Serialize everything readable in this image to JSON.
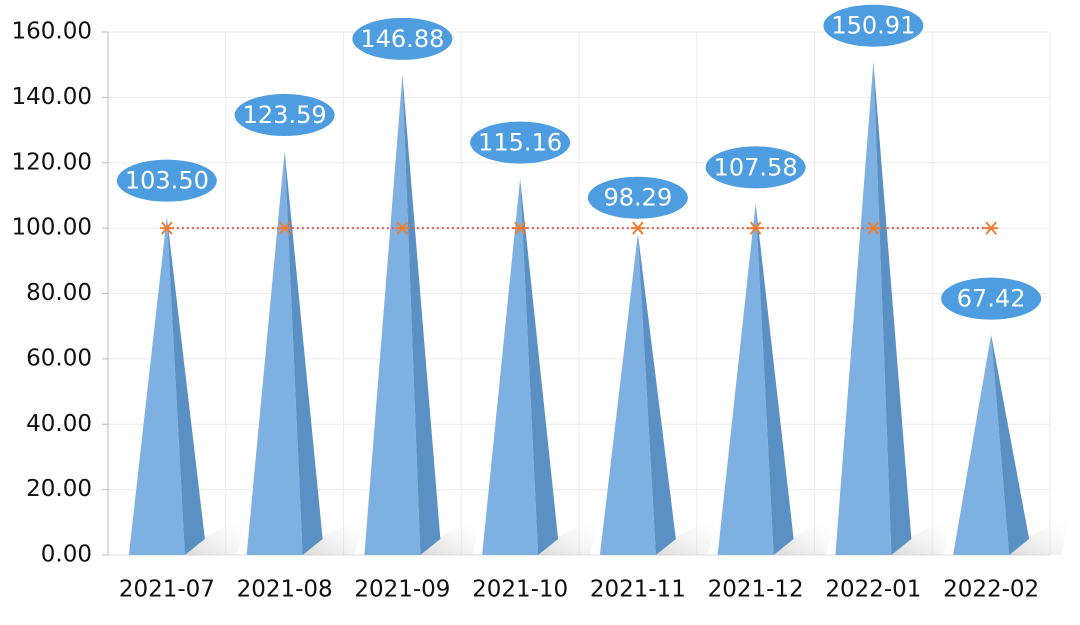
{
  "chart_data": {
    "type": "bar",
    "categories": [
      "2021-07",
      "2021-08",
      "2021-09",
      "2021-10",
      "2021-11",
      "2021-12",
      "2022-01",
      "2022-02"
    ],
    "series": [
      {
        "type": "bar",
        "color": "#7eb1e1",
        "label_color": "#4d9de0",
        "values": [
          103.5,
          123.59,
          146.88,
          115.16,
          98.29,
          107.58,
          150.91,
          67.42
        ],
        "value_labels": [
          "103.50",
          "123.59",
          "146.88",
          "115.16",
          "98.29",
          "107.58",
          "150.91",
          "67.42"
        ]
      },
      {
        "type": "line",
        "color": "#e05a4f",
        "marker_color": "#ee7d31",
        "values": [
          100,
          100,
          100,
          100,
          100,
          100,
          100,
          100
        ]
      }
    ],
    "ylim": [
      0,
      160
    ],
    "yticks": [
      {
        "value": 0,
        "label": "0.00"
      },
      {
        "value": 20,
        "label": "20.00"
      },
      {
        "value": 40,
        "label": "40.00"
      },
      {
        "value": 60,
        "label": "60.00"
      },
      {
        "value": 80,
        "label": "80.00"
      },
      {
        "value": 100,
        "label": "100.00"
      },
      {
        "value": 120,
        "label": "120.00"
      },
      {
        "value": 140,
        "label": "140.00"
      },
      {
        "value": 160,
        "label": "160.00"
      }
    ],
    "grid": true
  }
}
